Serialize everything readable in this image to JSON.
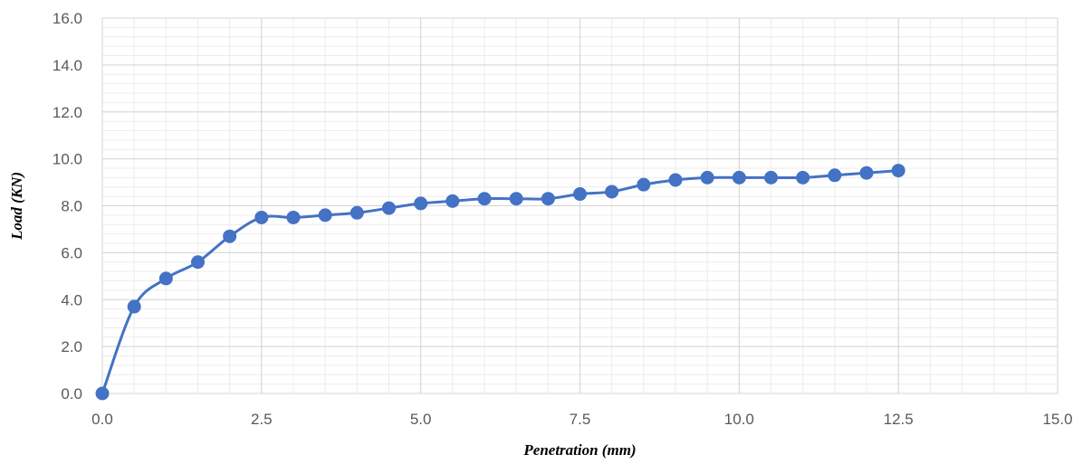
{
  "chart_data": {
    "type": "scatter",
    "title": "",
    "xlabel": "Penetration (mm)",
    "ylabel": "Load (KN)",
    "xlim": [
      0,
      15
    ],
    "ylim": [
      0,
      16
    ],
    "x_ticks": [
      "0.0",
      "2.5",
      "5.0",
      "7.5",
      "10.0",
      "12.5",
      "15.0"
    ],
    "y_ticks": [
      "0.0",
      "2.0",
      "4.0",
      "6.0",
      "8.0",
      "10.0",
      "12.0",
      "14.0",
      "16.0"
    ],
    "grid": true,
    "minor_grid": true,
    "smoothed_line": true,
    "series_color": "#4472C4",
    "series": [
      {
        "x": [
          0,
          0.5,
          1.0,
          1.5,
          2.0,
          2.5,
          3.0,
          3.5,
          4.0,
          4.5,
          5.0,
          5.5,
          6.0,
          6.5,
          7.0,
          7.5,
          8.0,
          8.5,
          9.0,
          9.5,
          10.0,
          10.5,
          11.0,
          11.5,
          12.0,
          12.5
        ],
        "y": [
          0,
          3.7,
          4.9,
          5.6,
          6.7,
          7.5,
          7.5,
          7.6,
          7.7,
          7.9,
          8.1,
          8.2,
          8.3,
          8.3,
          8.3,
          8.5,
          8.6,
          8.9,
          9.1,
          9.2,
          9.2,
          9.2,
          9.2,
          9.3,
          9.4,
          9.5
        ]
      }
    ]
  }
}
